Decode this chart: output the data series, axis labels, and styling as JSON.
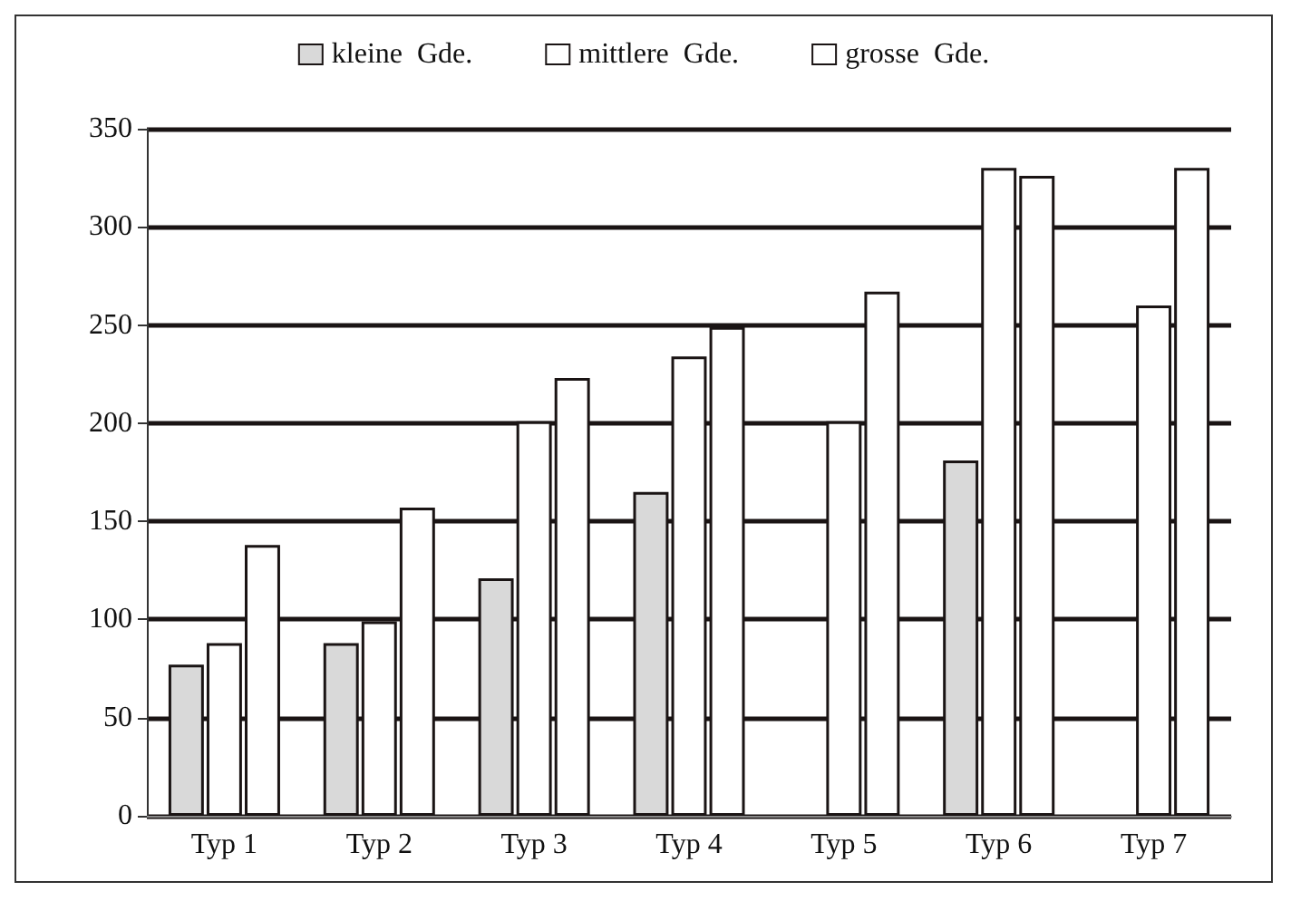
{
  "chart_data": {
    "type": "bar",
    "categories": [
      "Typ 1",
      "Typ 2",
      "Typ 3",
      "Typ 4",
      "Typ 5",
      "Typ 6",
      "Typ 7"
    ],
    "series": [
      {
        "name": "kleine  Gde.",
        "color": "#d9d9d9",
        "values": [
          77,
          88,
          121,
          165,
          null,
          181,
          null
        ]
      },
      {
        "name": "mittlere  Gde.",
        "color": "#ffffff",
        "values": [
          88,
          99,
          201,
          234,
          201,
          330,
          260
        ]
      },
      {
        "name": "grosse  Gde.",
        "color": "#ffffff",
        "values": [
          138,
          157,
          223,
          249,
          267,
          326,
          330
        ]
      }
    ],
    "ylim": [
      0,
      350
    ],
    "yticks": [
      0,
      50,
      100,
      150,
      200,
      250,
      300,
      350
    ],
    "grid": "y",
    "legend": "top"
  }
}
